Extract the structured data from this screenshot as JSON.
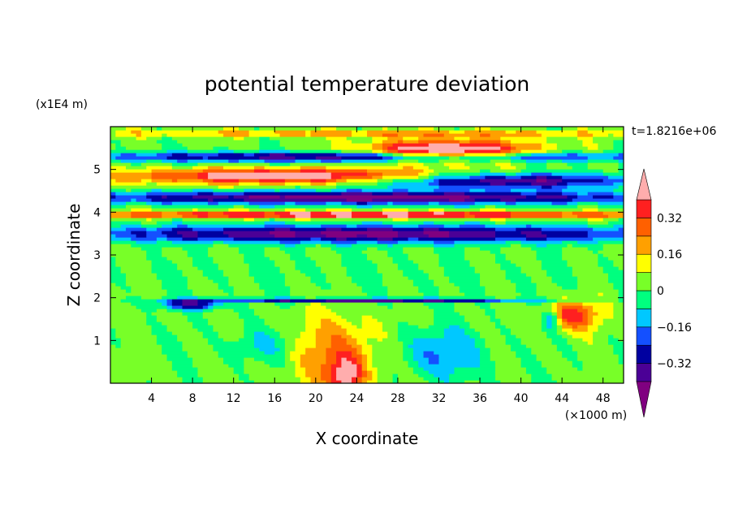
{
  "chart_data": {
    "type": "heatmap",
    "title": "potential temperature deviation",
    "xlabel": "X coordinate",
    "ylabel": "Z coordinate",
    "x_unit_label": "(×1000 m)",
    "y_unit_label": "(x1E4 m)",
    "time_label": "t=1.8216e+06",
    "xlim": [
      0,
      50
    ],
    "ylim": [
      0,
      6
    ],
    "x_ticks": [
      4,
      8,
      12,
      16,
      20,
      24,
      28,
      32,
      36,
      40,
      44,
      48
    ],
    "y_ticks": [
      1,
      2,
      3,
      4,
      5
    ],
    "colorbar": {
      "levels": [
        -0.4,
        -0.32,
        -0.24,
        -0.16,
        -0.08,
        0,
        0.08,
        0.16,
        0.24,
        0.32,
        0.4
      ],
      "tick_labels": [
        "0.32",
        "0.16",
        "0",
        "−0.16",
        "−0.32"
      ],
      "tick_values": [
        0.32,
        0.16,
        0,
        -0.16,
        -0.32
      ],
      "colors": [
        "#800080",
        "#4b0096",
        "#0000a0",
        "#1450ff",
        "#00c8ff",
        "#00ff7f",
        "#78ff28",
        "#ffff00",
        "#ffa000",
        "#ff6000",
        "#ff2020",
        "#ffadad"
      ],
      "extend": "both"
    }
  }
}
